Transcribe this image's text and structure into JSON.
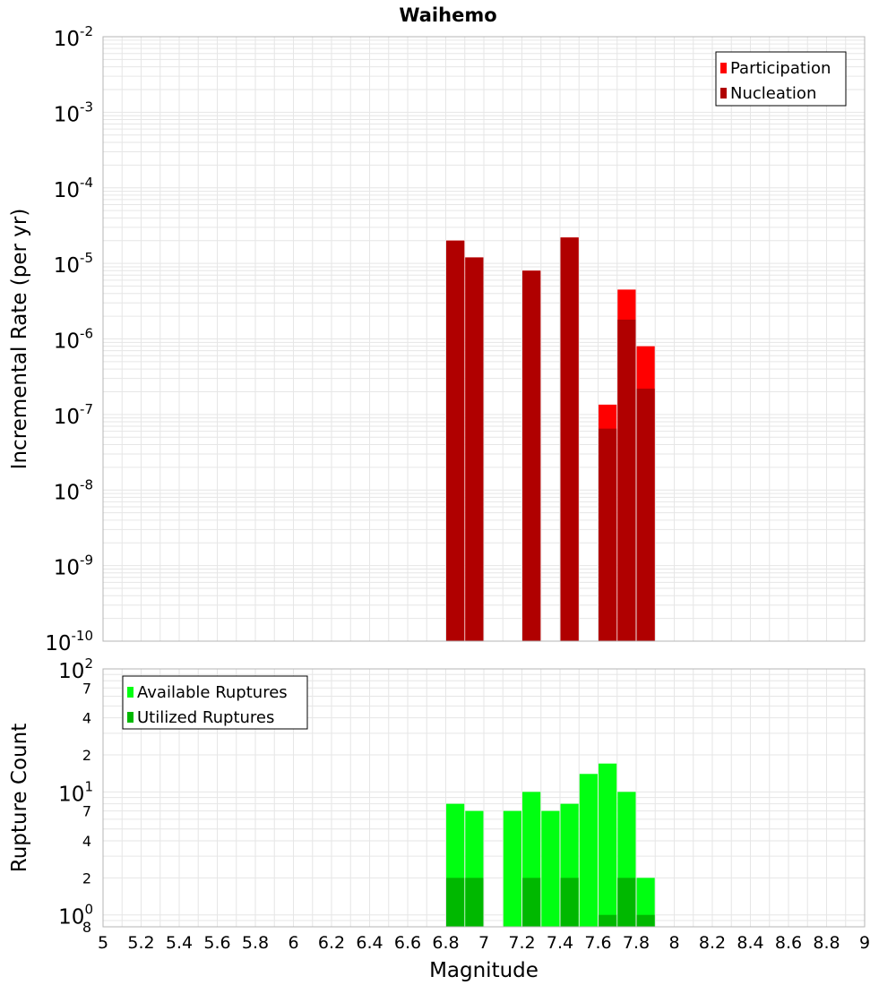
{
  "title": "Waihemo",
  "x_axis": {
    "label": "Magnitude",
    "ticks": [
      "5",
      "5.2",
      "5.4",
      "5.6",
      "5.8",
      "6",
      "6.2",
      "6.4",
      "6.6",
      "6.8",
      "7",
      "7.2",
      "7.4",
      "7.6",
      "7.8",
      "8",
      "8.2",
      "8.4",
      "8.6",
      "8.8",
      "9"
    ]
  },
  "colors": {
    "participation": "#ff0000",
    "nucleation": "#b00000",
    "available": "#00ff11",
    "utilized": "#00b800",
    "grid": "#e6e6e6",
    "frame": "#b4b4b4"
  },
  "chart_data": [
    {
      "type": "bar",
      "title": "Waihemo",
      "xlabel": "Magnitude",
      "ylabel": "Incremental Rate (per yr)",
      "xlim": [
        5,
        9
      ],
      "ylim": [
        1e-10,
        0.01
      ],
      "yscale": "log",
      "grid": true,
      "legend_placement": "top-right",
      "y_tick_labels": [
        {
          "base": "10",
          "exp": "-2"
        },
        {
          "base": "10",
          "exp": "-3"
        },
        {
          "base": "10",
          "exp": "-4"
        },
        {
          "base": "10",
          "exp": "-5"
        },
        {
          "base": "10",
          "exp": "-6"
        },
        {
          "base": "10",
          "exp": "-7"
        },
        {
          "base": "10",
          "exp": "-8"
        },
        {
          "base": "10",
          "exp": "-9"
        },
        {
          "base": "10",
          "exp": "-10"
        }
      ],
      "x": [
        6.85,
        6.95,
        7.25,
        7.45,
        7.65,
        7.75,
        7.85
      ],
      "series": [
        {
          "name": "Participation",
          "values": [
            2e-05,
            1.2e-05,
            8e-06,
            2.2e-05,
            1.35e-07,
            4.5e-06,
            8e-07
          ]
        },
        {
          "name": "Nucleation",
          "values": [
            2e-05,
            1.2e-05,
            8e-06,
            2.2e-05,
            6.5e-08,
            1.8e-06,
            2.2e-07
          ]
        }
      ]
    },
    {
      "type": "bar",
      "xlabel": "Magnitude",
      "ylabel": "Rupture Count",
      "xlim": [
        5,
        9
      ],
      "ylim": [
        0.8,
        100
      ],
      "yscale": "log",
      "grid": true,
      "legend_placement": "top-left",
      "y_tick_labels": [
        {
          "value": 100,
          "base": "10",
          "exp": "2"
        },
        {
          "value": 70,
          "label": "7"
        },
        {
          "value": 40,
          "label": "4"
        },
        {
          "value": 20,
          "label": "2"
        },
        {
          "value": 10,
          "base": "10",
          "exp": "1"
        },
        {
          "value": 7,
          "label": "7"
        },
        {
          "value": 4,
          "label": "4"
        },
        {
          "value": 2,
          "label": "2"
        },
        {
          "value": 1,
          "base": "10",
          "exp": "0"
        },
        {
          "value": 0.8,
          "label": "8"
        }
      ],
      "x": [
        6.85,
        6.95,
        7.15,
        7.25,
        7.35,
        7.45,
        7.55,
        7.65,
        7.75,
        7.85
      ],
      "series": [
        {
          "name": "Available Ruptures",
          "values": [
            8,
            7,
            7,
            10,
            7,
            8,
            14,
            17,
            10,
            2
          ]
        },
        {
          "name": "Utilized Ruptures",
          "values": [
            2,
            2,
            0,
            2,
            0,
            2,
            0,
            1,
            2,
            1
          ]
        }
      ]
    }
  ]
}
